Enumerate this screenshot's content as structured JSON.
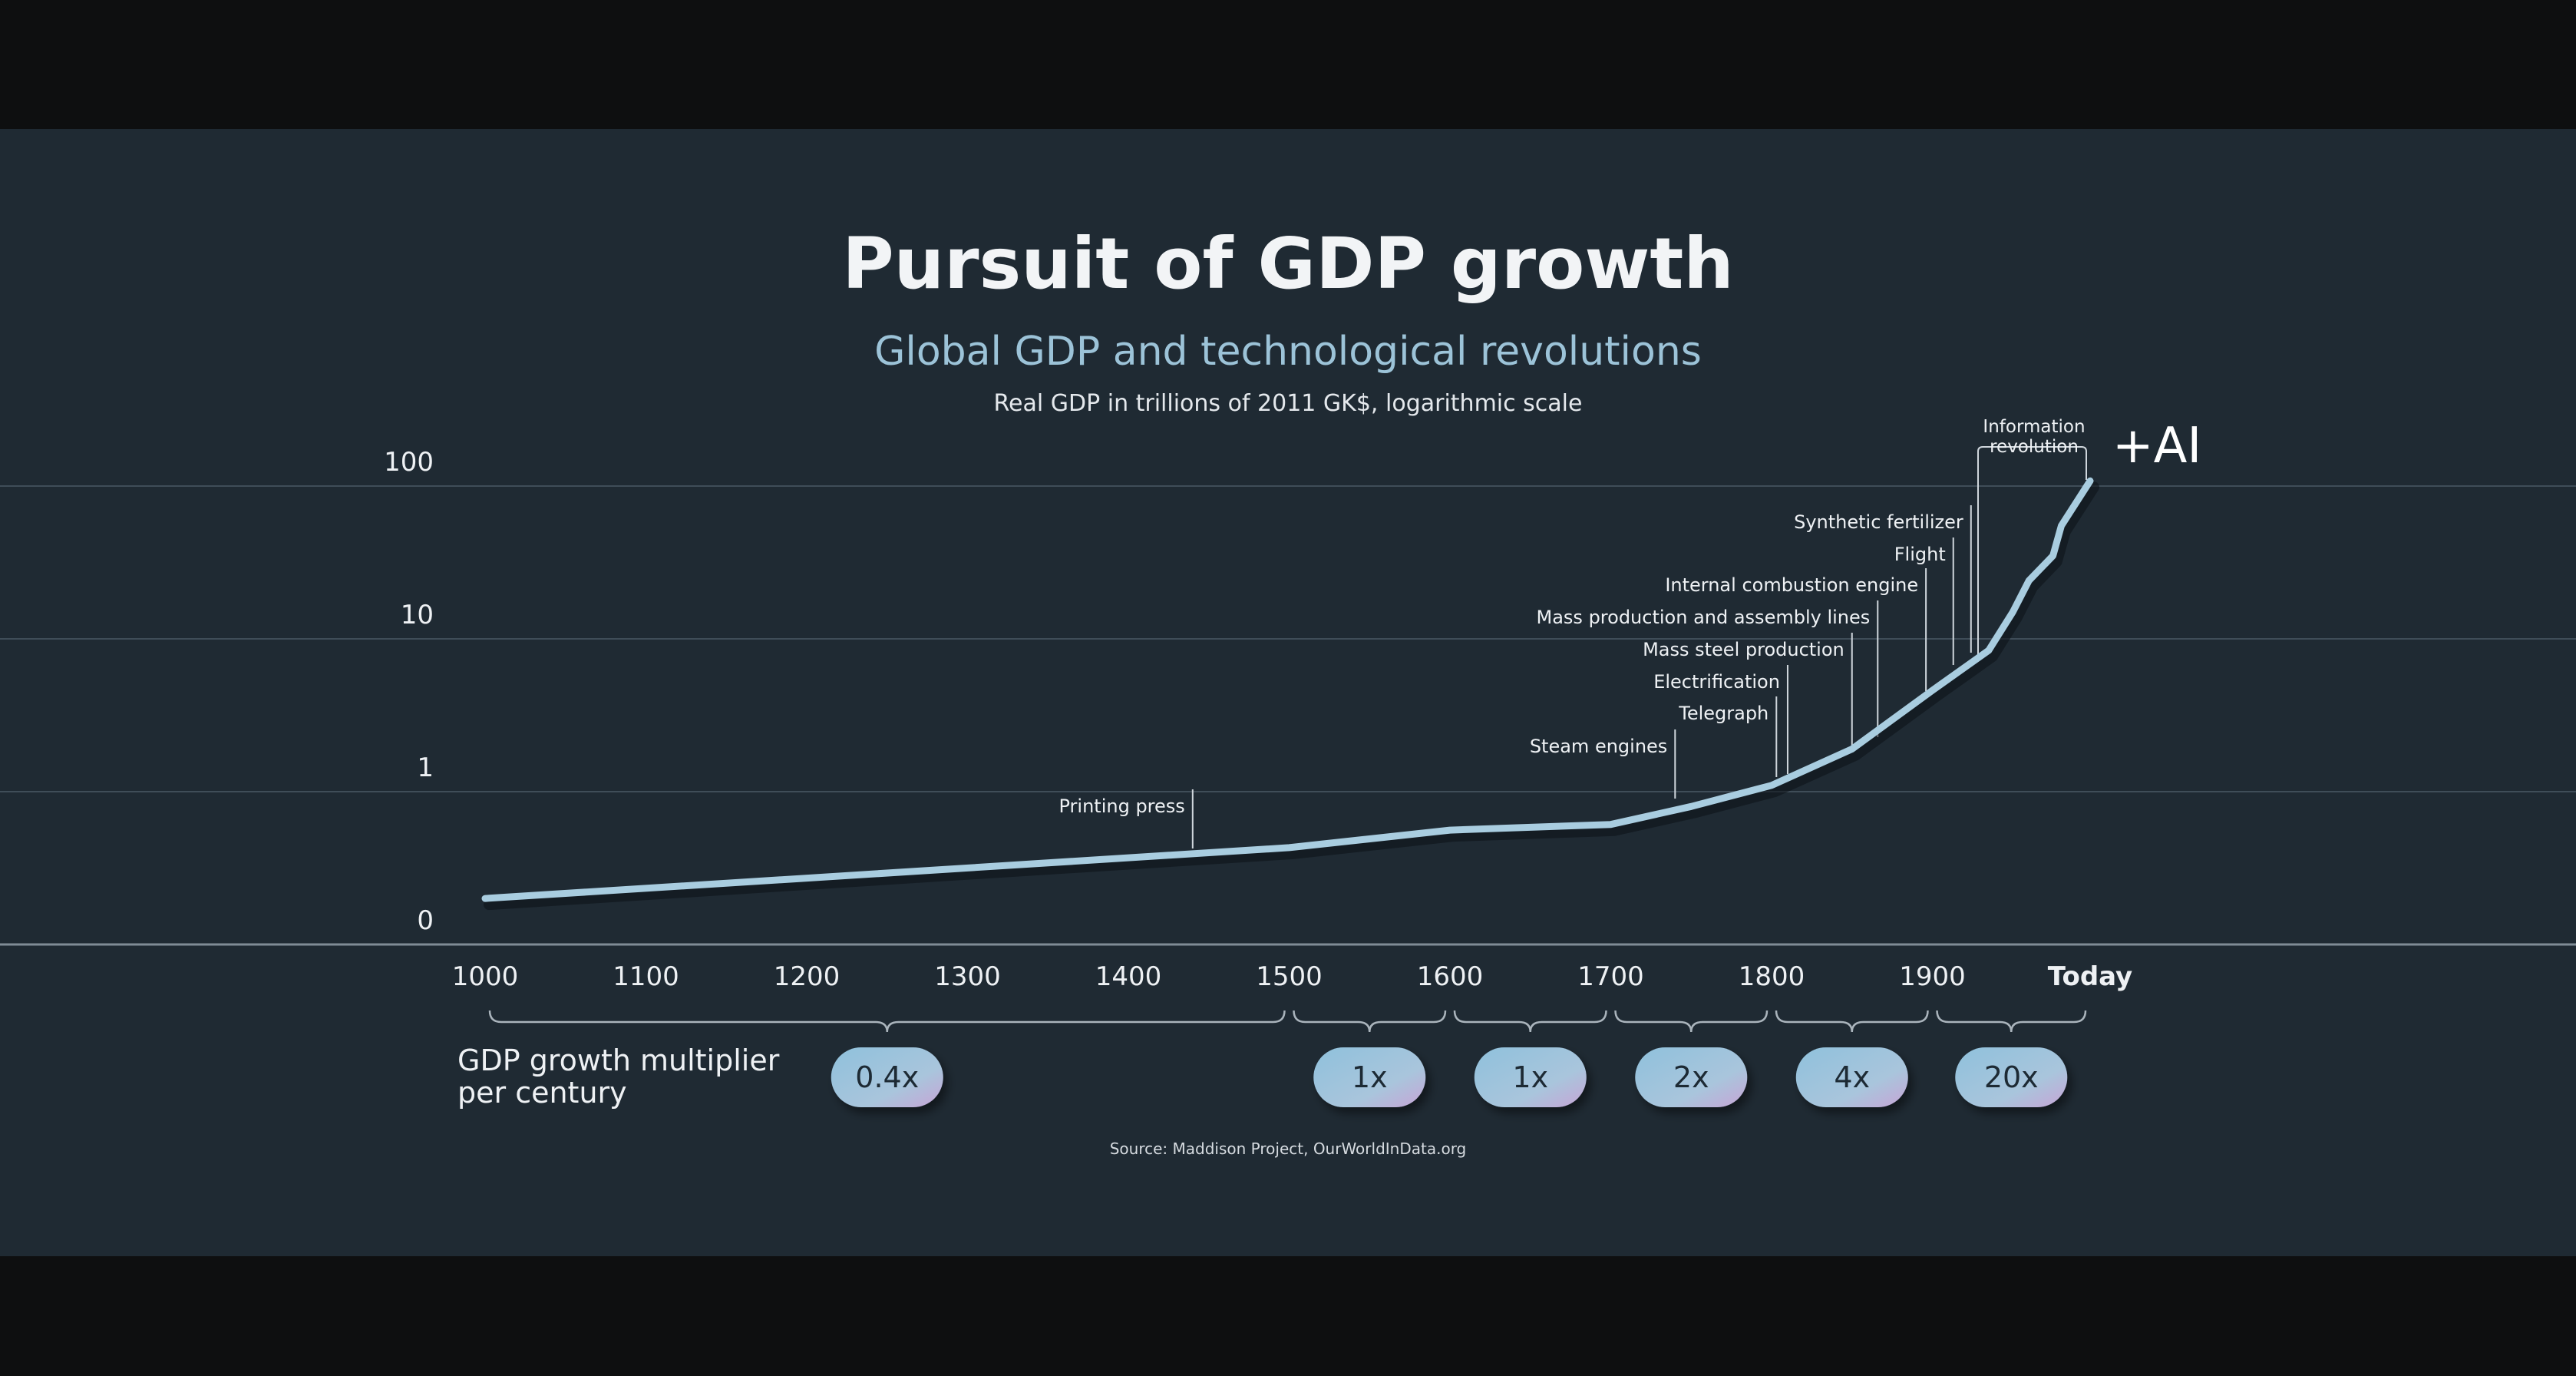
{
  "title": "Pursuit of GDP growth",
  "subtitle": "Global GDP and technological revolutions",
  "unit_note": "Real GDP in trillions of 2011 GK$, logarithmic scale",
  "source": "Source: Maddison Project, OurWorldInData.org",
  "colors": {
    "line": "#a9cde0",
    "background": "#1f2a33",
    "gridline": "#3f4d58",
    "pill_start": "#8fc1dc",
    "pill_end": "#c8a6d8"
  },
  "chart_data": {
    "type": "line",
    "title": "Pursuit of GDP growth",
    "subtitle": "Global GDP and technological revolutions",
    "ylabel": "Real GDP in trillions of 2011 GK$, logarithmic scale",
    "y_scale": "log",
    "y_ticks": [
      "100",
      "10",
      "1",
      "0"
    ],
    "x_ticks": [
      "1000",
      "1100",
      "1200",
      "1300",
      "1400",
      "1500",
      "1600",
      "1700",
      "1800",
      "1900",
      "Today"
    ],
    "grid": true,
    "series": [
      {
        "x": [
          1000,
          1500,
          1600,
          1700,
          1750,
          1800,
          1850,
          1900,
          1935,
          1950,
          1960,
          1975,
          2000,
          2022
        ],
        "y": [
          0.2,
          0.43,
          0.56,
          0.61,
          0.8,
          1.1,
          1.9,
          4.6,
          8.4,
          15,
          24,
          35,
          55,
          108
        ]
      }
    ],
    "annotations": [
      {
        "label": "Printing press",
        "year": 1440
      },
      {
        "label": "Steam engines",
        "year": 1740
      },
      {
        "label": "Telegraph",
        "year": 1803
      },
      {
        "label": "Electrification",
        "year": 1810
      },
      {
        "label": "Mass steel production",
        "year": 1850
      },
      {
        "label": "Mass production and assembly lines",
        "year": 1866
      },
      {
        "label": "Internal combustion engine",
        "year": 1896
      },
      {
        "label": "Flight",
        "year": 1913
      },
      {
        "label": "Synthetic fertilizer",
        "year": 1924
      },
      {
        "label": "Information\nrevolution",
        "year": 1930
      }
    ],
    "callout": "+AI",
    "growth_multiplier": {
      "label": "GDP growth multiplier\nper century",
      "periods": [
        {
          "from": "1000",
          "to": "1500",
          "value": "0.4x"
        },
        {
          "from": "1500",
          "to": "1600",
          "value": "1x"
        },
        {
          "from": "1600",
          "to": "1700",
          "value": "1x"
        },
        {
          "from": "1700",
          "to": "1800",
          "value": "2x"
        },
        {
          "from": "1800",
          "to": "1900",
          "value": "4x"
        },
        {
          "from": "1900",
          "to": "Today",
          "value": "20x"
        }
      ]
    }
  }
}
